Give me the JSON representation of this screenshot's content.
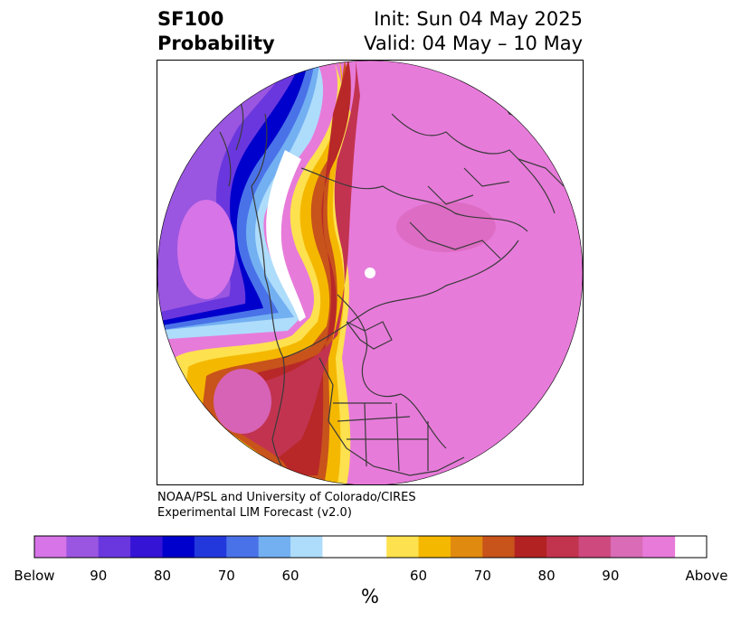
{
  "header": {
    "title_line1": "SF100",
    "title_line2": "Probability",
    "init": "Init: Sun 04 May 2025",
    "valid": "Valid: 04 May – 10 May"
  },
  "credit": {
    "line1": "NOAA/PSL and University of Colorado/CIRES",
    "line2": "Experimental LIM Forecast (v2.0)"
  },
  "colorbar": {
    "unit": "%",
    "colors": [
      "#d774e8",
      "#9a56e0",
      "#6a37de",
      "#3514d6",
      "#0000cc",
      "#2338dc",
      "#4a72e8",
      "#73b0f2",
      "#aedcfb",
      "#ffffff",
      "#ffffff",
      "#fde14e",
      "#f5b800",
      "#e08a10",
      "#c8531b",
      "#b22222",
      "#c2334e",
      "#cd497e",
      "#d96bb7",
      "#e87ad9"
    ],
    "labels": [
      "Below",
      "90",
      "80",
      "70",
      "60",
      "60",
      "70",
      "80",
      "90",
      "Above"
    ]
  },
  "map": {
    "region": "Northern Hemisphere polar stereographic",
    "colors": {
      "above_max": "#e77bda",
      "above_90": "#d763b6",
      "above_80": "#c23350",
      "above_70": "#b82828",
      "above_65": "#c8531b",
      "above_60": "#e08a10",
      "above_55": "#f5b800",
      "above_50": "#fde14e",
      "below_55": "#aedcfb",
      "below_60": "#73b0f2",
      "below_65": "#4a72e8",
      "below_70": "#0000cc",
      "below_80": "#6a37de",
      "below_90": "#9a56e0",
      "below_max": "#d774e8",
      "coastline": "#3a3a3a"
    }
  }
}
